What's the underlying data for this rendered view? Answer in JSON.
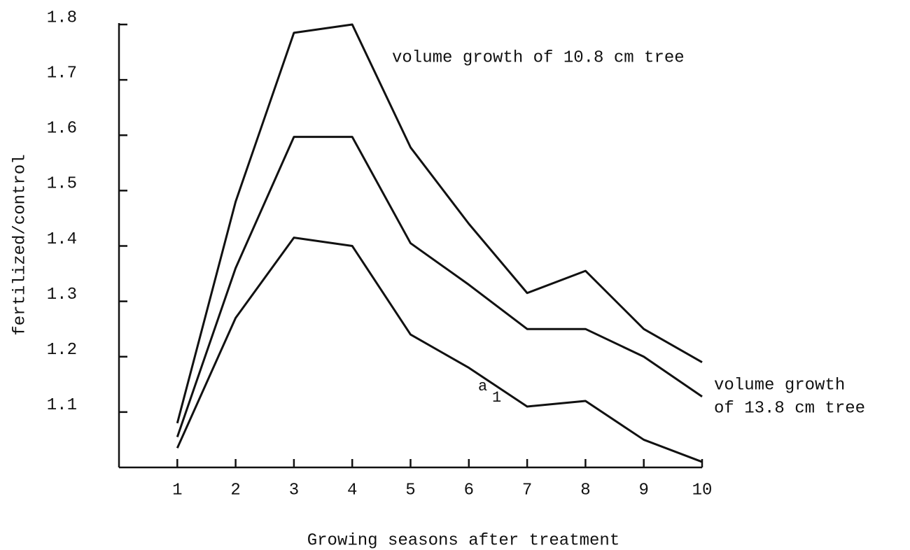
{
  "chart_data": {
    "type": "line",
    "x_label": "Growing seasons after treatment",
    "y_label": "fertilized/control",
    "x": [
      1,
      2,
      3,
      4,
      5,
      6,
      7,
      8,
      9,
      10
    ],
    "series": [
      {
        "color": "#111111",
        "values": [
          1.08,
          1.48,
          1.785,
          1.8,
          1.578,
          1.44,
          1.315,
          1.355,
          1.25,
          1.19
        ]
      },
      {
        "color": "#111111",
        "values": [
          1.055,
          1.36,
          1.597,
          1.597,
          1.405,
          1.33,
          1.25,
          1.25,
          1.2,
          1.128
        ]
      },
      {
        "color": "#111111",
        "values": [
          1.035,
          1.27,
          1.415,
          1.4,
          1.24,
          1.18,
          1.11,
          1.12,
          1.05,
          1.01
        ]
      }
    ],
    "annotations": [
      "volume growth of 10.8 cm tree",
      "volume growth",
      "of 13.8 cm tree",
      "a",
      "1"
    ],
    "xlim": [
      0,
      10
    ],
    "xticks": [
      1,
      2,
      3,
      4,
      5,
      6,
      7,
      8,
      9,
      10
    ],
    "ylim": [
      1.0,
      1.8
    ],
    "yticks": [
      1.1,
      1.2,
      1.3,
      1.4,
      1.5,
      1.6,
      1.7,
      1.8
    ]
  }
}
